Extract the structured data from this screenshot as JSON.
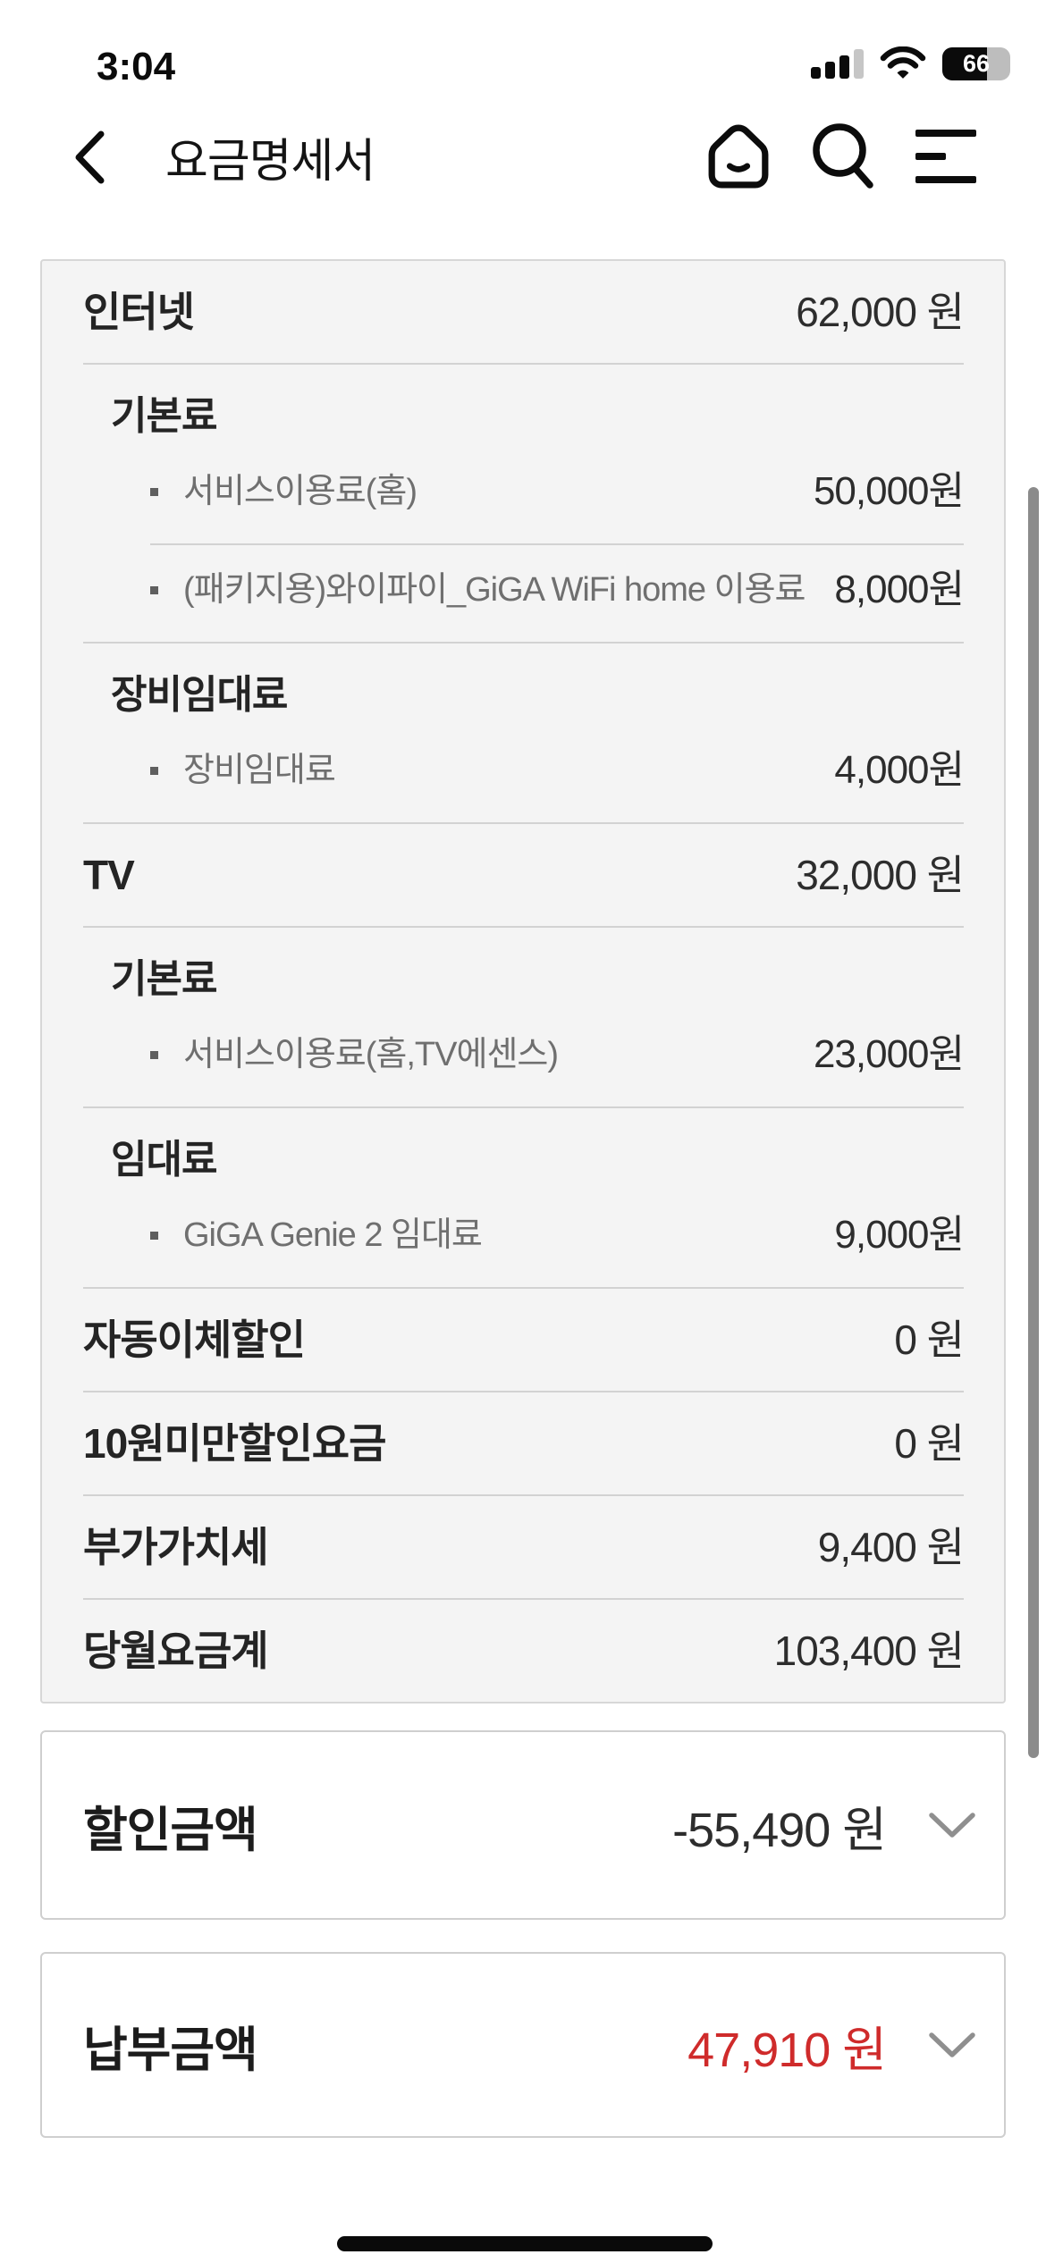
{
  "status_bar": {
    "time": "3:04",
    "battery_percent": 66,
    "battery_label": "66",
    "signal_icon": "cellular-signal-3-of-4",
    "wifi_icon": "wifi-full"
  },
  "header": {
    "back_icon": "chevron-left",
    "title": "요금명세서",
    "home_icon": "home",
    "search_icon": "magnifier",
    "menu_icon": "hamburger-lines"
  },
  "bill": {
    "items": [
      {
        "kind": "total",
        "label": "인터넷",
        "value": "62,000 원"
      },
      {
        "kind": "section",
        "label": "기본료"
      },
      {
        "kind": "sub",
        "label": "서비스이용료(홈)",
        "value": "50,000원"
      },
      {
        "kind": "sub",
        "label": "(패키지용)와이파이_GiGA WiFi home 이용료",
        "value": "8,000원"
      },
      {
        "kind": "section",
        "label": "장비임대료"
      },
      {
        "kind": "sub",
        "label": "장비임대료",
        "value": "4,000원"
      },
      {
        "kind": "total",
        "label": "TV",
        "value": "32,000 원"
      },
      {
        "kind": "section",
        "label": "기본료"
      },
      {
        "kind": "sub",
        "label": "서비스이용료(홈,TV에센스)",
        "value": "23,000원"
      },
      {
        "kind": "section",
        "label": "임대료"
      },
      {
        "kind": "sub",
        "label": "GiGA Genie 2 임대료",
        "value": "9,000원"
      },
      {
        "kind": "total",
        "label": "자동이체할인",
        "value": "0 원"
      },
      {
        "kind": "total",
        "label": "10원미만할인요금",
        "value": "0 원"
      },
      {
        "kind": "total",
        "label": "부가가치세",
        "value": "9,400 원"
      },
      {
        "kind": "total",
        "label": "당월요금계",
        "value": "103,400 원"
      }
    ]
  },
  "summary": {
    "discount": {
      "label": "할인금액",
      "value": "-55,490 원",
      "chevron": "chevron-down"
    },
    "payment": {
      "label": "납부금액",
      "value": "47,910 원",
      "chevron": "chevron-down"
    }
  },
  "colors": {
    "payment_red": "#cf2b2b",
    "card_bg": "#f4f4f4",
    "card_border": "#d7d7d7",
    "divider": "#d2d2d2",
    "sub_label_gray": "#6f6f6f",
    "chevron_gray": "#8f8f8f",
    "scrollbar_gray": "#8b8b8b"
  }
}
